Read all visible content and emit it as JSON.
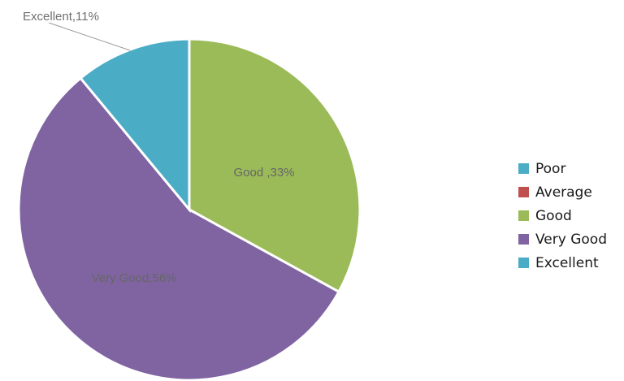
{
  "chart_data": {
    "type": "pie",
    "slices": [
      {
        "name": "Poor",
        "value": 0,
        "label": "",
        "color": "#4bacc6"
      },
      {
        "name": "Average",
        "value": 0,
        "label": "",
        "color": "#c0504d"
      },
      {
        "name": "Good",
        "value": 33,
        "label": "Good ,33%",
        "color": "#9bbb59"
      },
      {
        "name": "Very Good",
        "value": 56,
        "label": "Very Good,56%",
        "color": "#8064a2"
      },
      {
        "name": "Excellent",
        "value": 11,
        "label": "Excellent,11%",
        "color": "#4bacc6"
      }
    ],
    "legend": {
      "placement": "right",
      "entries": [
        "Poor",
        "Average",
        "Good",
        "Very Good",
        "Excellent"
      ]
    }
  }
}
